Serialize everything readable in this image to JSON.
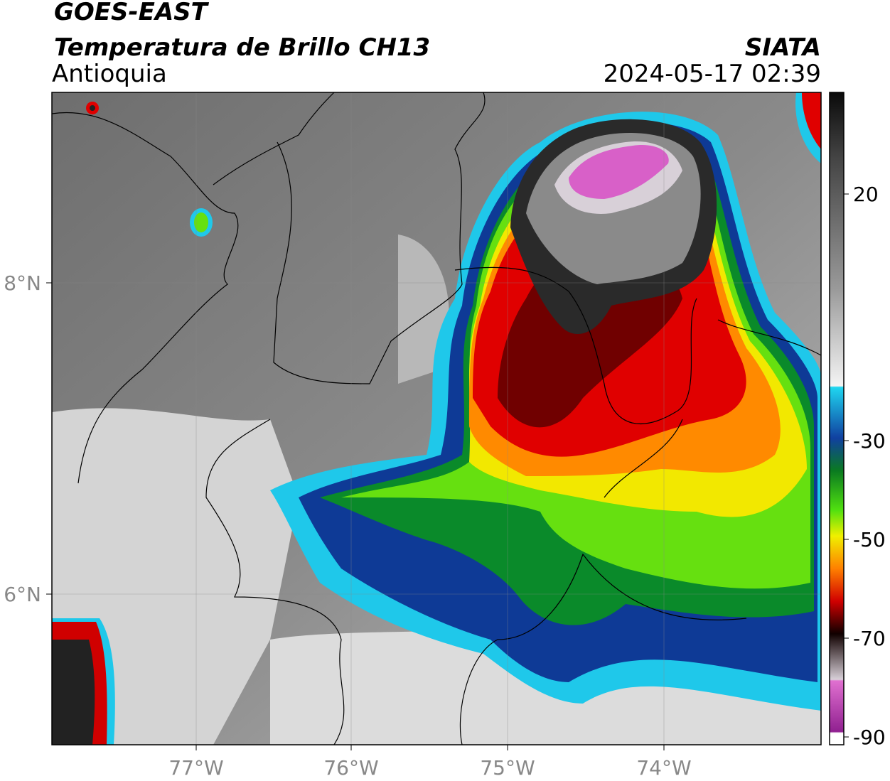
{
  "header": {
    "satellite": "GOES-EAST",
    "product": "Temperatura de Brillo CH13",
    "region": "Antioquia",
    "agency": "SIATA",
    "datetime": "2024-05-17 02:39"
  },
  "map": {
    "lon_ticks": [
      "77°W",
      "76°W",
      "75°W",
      "74°W"
    ],
    "lat_ticks": [
      "8°N",
      "6°N"
    ]
  },
  "colorbar": {
    "ticks": [
      "20",
      "-30",
      "-50",
      "-70",
      "-90"
    ]
  }
}
